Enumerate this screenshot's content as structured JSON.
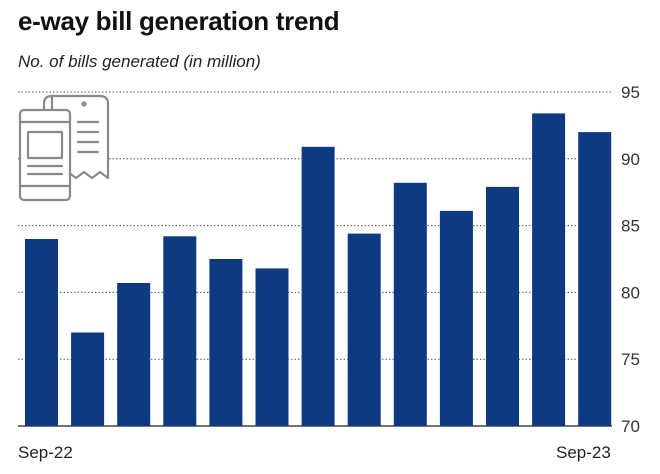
{
  "chart_data": {
    "type": "bar",
    "title": "e-way bill generation trend",
    "subtitle": "No. of bills generated (in million)",
    "ylim": [
      70,
      95
    ],
    "yticks": [
      70,
      75,
      80,
      85,
      90,
      95
    ],
    "grid": "horizontal dotted",
    "y_axis_position": "right",
    "categories": [
      "Sep-22",
      "",
      "",
      "",
      "",
      "",
      "",
      "",
      "",
      "",
      "",
      "",
      "Sep-23"
    ],
    "x_tick_labels_shown": [
      "Sep-22",
      "Sep-23"
    ],
    "values": [
      84.0,
      77.0,
      80.7,
      84.2,
      82.5,
      81.8,
      90.9,
      84.4,
      88.2,
      86.1,
      87.9,
      93.4,
      92.0
    ],
    "bar_color": "#0d3a80",
    "icon": "receipt-bill-icon"
  }
}
